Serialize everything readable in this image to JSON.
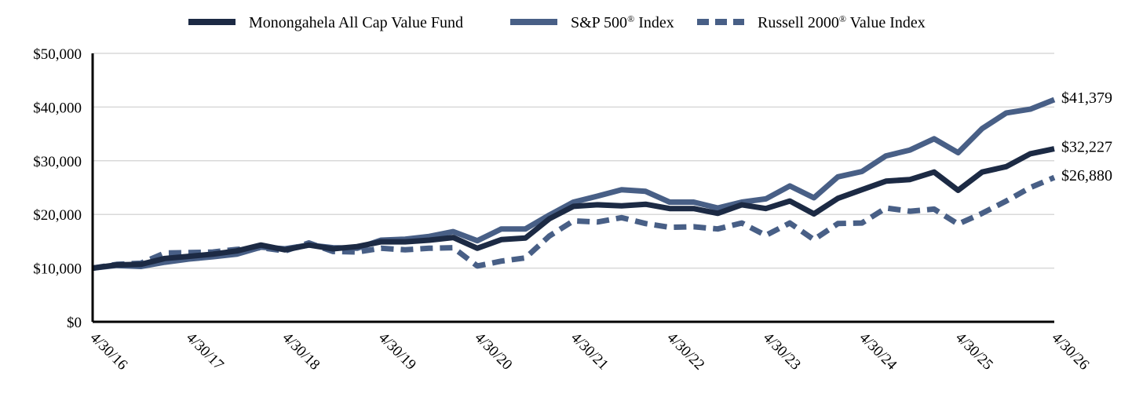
{
  "chart_data": {
    "type": "line",
    "title": "",
    "xlabel": "",
    "ylabel": "",
    "ylim": [
      0,
      50000
    ],
    "y_ticks": [
      0,
      10000,
      20000,
      30000,
      40000,
      50000
    ],
    "y_tick_labels": [
      "$0",
      "$10,000",
      "$20,000",
      "$30,000",
      "$40,000",
      "$50,000"
    ],
    "x_tick_labels": [
      "4/30/16",
      "4/30/17",
      "4/30/18",
      "4/30/19",
      "4/30/20",
      "4/30/21",
      "4/30/22",
      "4/30/23",
      "4/30/24",
      "4/30/25",
      "4/30/26"
    ],
    "x": [
      "4/30/16",
      "7/31/16",
      "10/31/16",
      "1/31/17",
      "4/30/17",
      "7/31/17",
      "10/31/17",
      "1/31/18",
      "4/30/18",
      "7/31/18",
      "10/31/18",
      "1/31/19",
      "4/30/19",
      "7/31/19",
      "10/31/19",
      "1/31/20",
      "4/30/20",
      "7/31/20",
      "10/31/20",
      "1/31/21",
      "4/30/21",
      "7/31/21",
      "10/31/21",
      "1/31/22",
      "4/30/22",
      "7/31/22",
      "10/31/22",
      "1/31/23",
      "4/30/23",
      "7/31/23",
      "10/31/23",
      "1/31/24",
      "4/30/24",
      "7/31/24",
      "10/31/24",
      "1/31/25",
      "4/30/25",
      "7/31/25",
      "10/31/25",
      "1/31/26",
      "4/30/26"
    ],
    "grid": true,
    "legend_position": "top",
    "series": [
      {
        "name": "Monongahela All Cap Value Fund",
        "color": "#1c2a44",
        "style": "solid",
        "end_label": "$32,227",
        "values": [
          10000,
          10600,
          10700,
          11800,
          12200,
          12600,
          13200,
          14300,
          13400,
          14300,
          13600,
          14000,
          14900,
          14900,
          15200,
          15700,
          13700,
          15300,
          15600,
          19200,
          21500,
          21800,
          21600,
          21900,
          21100,
          21100,
          20200,
          21800,
          21100,
          22500,
          20100,
          23000,
          24600,
          26200,
          26500,
          27900,
          24500,
          27900,
          28900,
          31300,
          32227
        ]
      },
      {
        "name": "S&P 500® Index",
        "color": "#485f86",
        "style": "solid",
        "end_label": "$41,379",
        "values": [
          10000,
          10500,
          10300,
          11100,
          11700,
          12100,
          12600,
          13900,
          13600,
          14300,
          13800,
          13700,
          15200,
          15400,
          15900,
          16800,
          15100,
          17300,
          17300,
          19900,
          22300,
          23400,
          24600,
          24300,
          22300,
          22300,
          21200,
          22300,
          22900,
          25300,
          23100,
          27000,
          28000,
          30900,
          32000,
          34100,
          31500,
          36000,
          38900,
          39600,
          41379
        ]
      },
      {
        "name": "Russell 2000® Value Index",
        "color": "#485f86",
        "style": "dashed",
        "end_label": "$26,880",
        "values": [
          10000,
          10700,
          10900,
          12800,
          12900,
          13000,
          13500,
          13800,
          13200,
          14700,
          13100,
          13000,
          13700,
          13400,
          13700,
          13800,
          10400,
          11300,
          11900,
          16000,
          18800,
          18600,
          19400,
          18300,
          17600,
          17700,
          17300,
          18400,
          16100,
          18400,
          15300,
          18300,
          18400,
          21200,
          20600,
          21000,
          18200,
          20200,
          22500,
          25000,
          26880
        ]
      }
    ]
  }
}
